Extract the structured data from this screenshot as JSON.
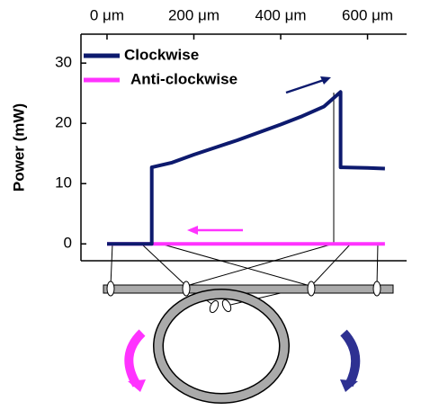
{
  "chart_data": {
    "type": "line",
    "y_label": "Power (mW)",
    "x": [
      0,
      103,
      103,
      150,
      200,
      250,
      300,
      350,
      400,
      450,
      500,
      538,
      538,
      600,
      640
    ],
    "series": [
      {
        "name": "Clockwise",
        "color": "#0d1a6e",
        "values": [
          0,
          0,
          12.7,
          13.5,
          14.8,
          16,
          17.2,
          18.5,
          19.8,
          21.2,
          22.8,
          25.2,
          12.7,
          12.6,
          12.5
        ]
      },
      {
        "name": "Anti-clockwise",
        "color": "#ff33ff",
        "values": [
          0,
          0,
          0,
          0,
          0,
          0,
          0,
          0,
          0,
          0,
          0,
          0,
          0,
          0,
          0
        ]
      }
    ],
    "xlim": [
      -60,
      690
    ],
    "xticks": [
      {
        "value": 0,
        "label": "0 μm"
      },
      {
        "value": 200,
        "label": "200 μm"
      },
      {
        "value": 400,
        "label": "400 μm"
      },
      {
        "value": 600,
        "label": "600 μm"
      }
    ],
    "ylim": [
      -2.8,
      34.8
    ],
    "yticks": [
      0,
      10,
      20,
      30
    ],
    "legend": "top-left"
  }
}
